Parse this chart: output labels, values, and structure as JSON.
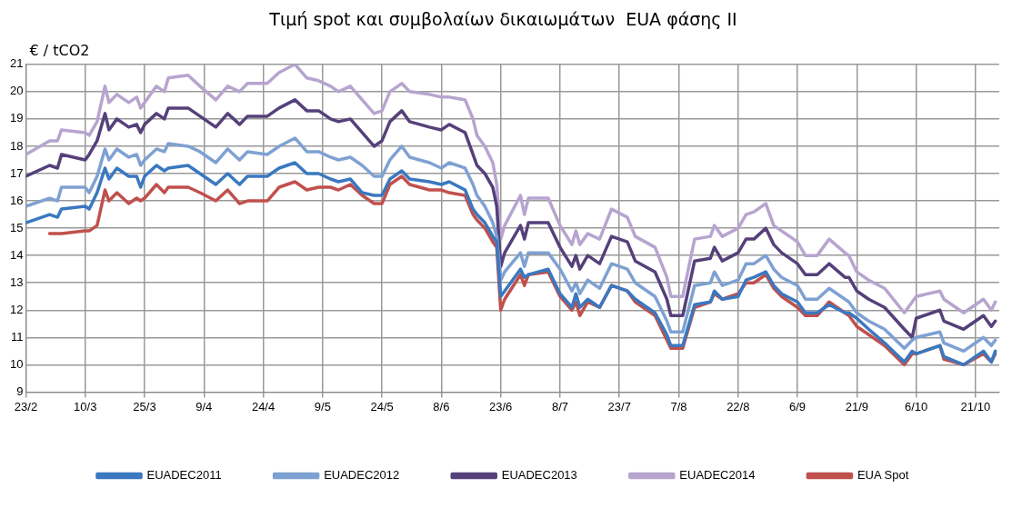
{
  "chart_data": {
    "type": "line",
    "title": "Τιμή spot και συμβολαίων δικαιωμάτων  EUA φάσης ΙΙ",
    "ylabel": "€ / tCO2",
    "x": [
      "--02-23",
      "--03-01",
      "--03-03",
      "--03-04",
      "--03-10",
      "--03-11",
      "--03-13",
      "--03-15",
      "--03-16",
      "--03-18",
      "--03-21",
      "--03-23",
      "--03-24",
      "--03-25",
      "--03-28",
      "--03-30",
      "--03-31",
      "--04-05",
      "--04-08",
      "--04-12",
      "--04-15",
      "--04-18",
      "--04-20",
      "--04-25",
      "--04-28",
      "--05-02",
      "--05-05",
      "--05-08",
      "--05-11",
      "--05-13",
      "--05-16",
      "--05-19",
      "--05-22",
      "--05-24",
      "--05-26",
      "--05-29",
      "--05-31",
      "--06-05",
      "--06-08",
      "--06-10",
      "--06-14",
      "--06-16",
      "--06-17",
      "--06-19",
      "--06-21",
      "--06-22",
      "--06-23",
      "--06-24",
      "--06-28",
      "--06-29",
      "--06-30",
      "--07-05",
      "--07-08",
      "--07-11",
      "--07-12",
      "--07-13",
      "--07-15",
      "--07-18",
      "--07-21",
      "--07-25",
      "--07-27",
      "--08-01",
      "--08-04",
      "--08-05",
      "--08-08",
      "--08-11",
      "--08-15",
      "--08-16",
      "--08-18",
      "--08-22",
      "--08-24",
      "--08-26",
      "--08-29",
      "--08-31",
      "--09-02",
      "--09-06",
      "--09-08",
      "--09-11",
      "--09-14",
      "--09-18",
      "--09-19",
      "--09-21",
      "--09-24",
      "--09-28",
      "--10-03",
      "--10-05",
      "--10-06",
      "--10-12",
      "--10-13",
      "--10-18",
      "--10-23",
      "--10-25",
      "--10-26"
    ],
    "series": [
      {
        "name": "EUADEC2011",
        "color": "#3a78c0",
        "values": [
          15.2,
          15.5,
          15.4,
          15.7,
          15.8,
          15.7,
          16.3,
          17.2,
          16.8,
          17.2,
          16.9,
          16.9,
          16.5,
          16.9,
          17.3,
          17.1,
          17.2,
          17.3,
          17.0,
          16.6,
          17.0,
          16.6,
          16.9,
          16.9,
          17.2,
          17.4,
          17.0,
          17.0,
          16.8,
          16.7,
          16.8,
          16.3,
          16.2,
          16.2,
          16.8,
          17.1,
          16.8,
          16.7,
          16.6,
          16.7,
          16.4,
          15.7,
          15.5,
          15.2,
          14.7,
          14.5,
          12.5,
          12.7,
          13.5,
          13.2,
          13.3,
          13.5,
          12.6,
          12.1,
          12.6,
          12.1,
          12.4,
          12.1,
          12.9,
          12.7,
          12.4,
          11.9,
          11.1,
          10.7,
          10.7,
          12.2,
          12.3,
          12.7,
          12.4,
          12.5,
          13.1,
          13.2,
          13.4,
          12.9,
          12.6,
          12.3,
          11.9,
          11.9,
          12.2,
          11.9,
          11.9,
          11.7,
          11.3,
          10.8,
          10.1,
          10.5,
          10.4,
          10.7,
          10.3,
          10.0,
          10.5,
          10.1,
          10.5
        ]
      },
      {
        "name": "EUADEC2012",
        "color": "#7ea1d2",
        "values": [
          15.8,
          16.1,
          16.0,
          16.5,
          16.5,
          16.3,
          16.9,
          17.9,
          17.5,
          17.9,
          17.6,
          17.7,
          17.3,
          17.5,
          17.9,
          17.8,
          18.1,
          18.0,
          17.8,
          17.4,
          17.9,
          17.5,
          17.8,
          17.7,
          18.0,
          18.3,
          17.8,
          17.8,
          17.6,
          17.5,
          17.6,
          17.3,
          16.9,
          16.9,
          17.5,
          18.0,
          17.6,
          17.4,
          17.2,
          17.4,
          17.2,
          16.6,
          16.2,
          15.8,
          15.2,
          14.7,
          13.1,
          13.4,
          14.1,
          13.6,
          14.1,
          14.1,
          13.5,
          12.7,
          13.0,
          12.6,
          13.1,
          12.8,
          13.7,
          13.5,
          13.0,
          12.5,
          11.6,
          11.2,
          11.2,
          12.9,
          13.0,
          13.4,
          12.9,
          13.1,
          13.7,
          13.7,
          14.0,
          13.5,
          13.2,
          12.9,
          12.4,
          12.4,
          12.8,
          12.4,
          12.3,
          11.9,
          11.6,
          11.3,
          10.6,
          10.9,
          11.0,
          11.2,
          10.8,
          10.5,
          11.0,
          10.7,
          10.9
        ]
      },
      {
        "name": "EUADEC2013",
        "color": "#55407a",
        "values": [
          16.9,
          17.3,
          17.2,
          17.7,
          17.5,
          17.7,
          18.2,
          19.2,
          18.6,
          19.0,
          18.7,
          18.8,
          18.5,
          18.8,
          19.2,
          19.0,
          19.4,
          19.4,
          19.1,
          18.7,
          19.2,
          18.8,
          19.1,
          19.1,
          19.4,
          19.7,
          19.3,
          19.3,
          19.0,
          18.9,
          19.0,
          18.5,
          18.0,
          18.2,
          18.9,
          19.3,
          18.9,
          18.7,
          18.6,
          18.8,
          18.5,
          17.7,
          17.3,
          17.0,
          16.5,
          15.8,
          13.6,
          14.1,
          15.1,
          14.6,
          15.2,
          15.2,
          14.3,
          13.6,
          14.0,
          13.5,
          14.0,
          13.7,
          14.7,
          14.5,
          13.8,
          13.4,
          12.4,
          11.8,
          11.8,
          13.8,
          13.9,
          14.3,
          13.8,
          14.1,
          14.6,
          14.6,
          15.0,
          14.4,
          14.1,
          13.7,
          13.3,
          13.3,
          13.7,
          13.2,
          13.2,
          12.7,
          12.4,
          12.1,
          11.3,
          11.0,
          11.7,
          12.0,
          11.6,
          11.3,
          11.8,
          11.4,
          11.6
        ]
      },
      {
        "name": "EUADEC2014",
        "color": "#b7a4cf",
        "values": [
          17.7,
          18.2,
          18.2,
          18.6,
          18.5,
          18.4,
          18.9,
          20.2,
          19.6,
          19.9,
          19.6,
          19.8,
          19.4,
          19.6,
          20.2,
          20.0,
          20.5,
          20.6,
          20.2,
          19.7,
          20.2,
          20.0,
          20.3,
          20.3,
          20.7,
          21.0,
          20.5,
          20.4,
          20.2,
          20.0,
          20.2,
          19.7,
          19.2,
          19.3,
          20.0,
          20.3,
          20.0,
          19.9,
          19.8,
          19.8,
          19.7,
          19.0,
          18.4,
          18.0,
          17.4,
          16.6,
          14.6,
          15.1,
          16.2,
          15.5,
          16.1,
          16.1,
          15.1,
          14.4,
          14.9,
          14.4,
          14.8,
          14.6,
          15.7,
          15.4,
          14.7,
          14.3,
          13.2,
          12.5,
          12.5,
          14.6,
          14.7,
          15.1,
          14.7,
          15.0,
          15.5,
          15.6,
          15.9,
          15.1,
          14.9,
          14.5,
          14.0,
          14.0,
          14.6,
          14.1,
          14.0,
          13.4,
          13.1,
          12.8,
          11.9,
          12.3,
          12.5,
          12.7,
          12.4,
          11.9,
          12.4,
          12.0,
          12.3
        ]
      },
      {
        "name": "EUA Spot",
        "color": "#c0504d",
        "values": [
          null,
          14.8,
          14.8,
          14.8,
          14.9,
          14.9,
          15.1,
          16.4,
          16.0,
          16.3,
          15.9,
          16.1,
          16.0,
          16.1,
          16.6,
          16.3,
          16.5,
          16.5,
          16.3,
          16.0,
          16.4,
          15.9,
          16.0,
          16.0,
          16.5,
          16.7,
          16.4,
          16.5,
          16.5,
          16.4,
          16.6,
          16.2,
          15.9,
          15.9,
          16.6,
          16.9,
          16.6,
          16.4,
          16.4,
          16.3,
          16.2,
          15.5,
          15.3,
          15.0,
          14.5,
          14.3,
          12.0,
          12.4,
          13.3,
          12.9,
          13.3,
          13.4,
          12.5,
          12.0,
          12.3,
          11.8,
          12.3,
          12.1,
          12.9,
          12.7,
          12.3,
          11.8,
          10.9,
          10.6,
          10.6,
          12.1,
          12.3,
          12.6,
          12.4,
          12.6,
          13.0,
          13.0,
          13.3,
          12.8,
          12.5,
          12.1,
          11.8,
          11.8,
          12.3,
          11.9,
          11.8,
          11.4,
          11.1,
          10.7,
          10.0,
          10.4,
          10.4,
          10.7,
          10.2,
          10.0,
          10.4,
          10.1,
          10.4
        ]
      }
    ],
    "xlim": [
      "--02-23",
      "--10-27"
    ],
    "xticks": [
      {
        "value": "--02-23",
        "label": "23/2"
      },
      {
        "value": "--03-10",
        "label": "10/3"
      },
      {
        "value": "--03-25",
        "label": "25/3"
      },
      {
        "value": "--04-09",
        "label": "9/4"
      },
      {
        "value": "--04-24",
        "label": "24/4"
      },
      {
        "value": "--05-09",
        "label": "9/5"
      },
      {
        "value": "--05-24",
        "label": "24/5"
      },
      {
        "value": "--06-08",
        "label": "8/6"
      },
      {
        "value": "--06-23",
        "label": "23/6"
      },
      {
        "value": "--07-08",
        "label": "8/7"
      },
      {
        "value": "--07-23",
        "label": "23/7"
      },
      {
        "value": "--08-07",
        "label": "7/8"
      },
      {
        "value": "--08-22",
        "label": "22/8"
      },
      {
        "value": "--09-06",
        "label": "6/9"
      },
      {
        "value": "--09-21",
        "label": "21/9"
      },
      {
        "value": "--10-06",
        "label": "6/10"
      },
      {
        "value": "--10-21",
        "label": "21/10"
      }
    ],
    "ylim": [
      9,
      21
    ],
    "yticks": [
      9,
      10,
      11,
      12,
      13,
      14,
      15,
      16,
      17,
      18,
      19,
      20,
      21
    ],
    "grid": true,
    "legend": "bottom",
    "marker": "none",
    "line_style": "solid"
  }
}
